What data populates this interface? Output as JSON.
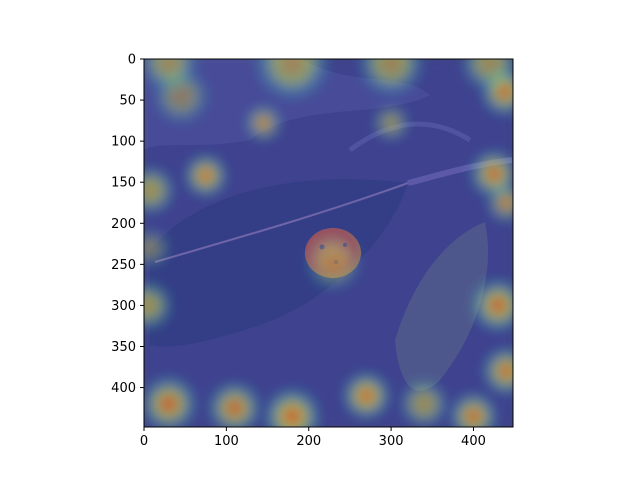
{
  "chart_data": {
    "type": "heatmap",
    "title": "",
    "xlabel": "",
    "ylabel": "",
    "xlim": [
      0,
      448
    ],
    "ylim": [
      448,
      0
    ],
    "x_ticks": [
      0,
      100,
      200,
      300,
      400
    ],
    "y_ticks": [
      0,
      50,
      100,
      150,
      200,
      250,
      300,
      350,
      400
    ],
    "grid": false,
    "colormap": "jet",
    "overlay_opacity": 0.5,
    "image_subject": "green apple leaf with an orange rust lesion, second leaf lower right",
    "colors": {
      "background_tint": "#3c3ca8",
      "hot": "#d9302a",
      "warm": "#f5e21f",
      "mid": "#2fd7c8"
    },
    "hotspots": [
      {
        "x": 75,
        "y": 142,
        "intensity": 1.0,
        "radius": 22
      },
      {
        "x": 145,
        "y": 78,
        "intensity": 0.85,
        "radius": 18
      },
      {
        "x": 300,
        "y": 78,
        "intensity": 0.7,
        "radius": 18
      },
      {
        "x": 45,
        "y": 45,
        "intensity": 0.55,
        "radius": 30
      },
      {
        "x": 30,
        "y": 5,
        "intensity": 0.7,
        "radius": 30
      },
      {
        "x": 180,
        "y": 5,
        "intensity": 0.75,
        "radius": 40
      },
      {
        "x": 300,
        "y": 5,
        "intensity": 0.75,
        "radius": 35
      },
      {
        "x": 420,
        "y": 5,
        "intensity": 0.75,
        "radius": 30
      },
      {
        "x": 438,
        "y": 40,
        "intensity": 0.95,
        "radius": 25
      },
      {
        "x": 425,
        "y": 140,
        "intensity": 0.95,
        "radius": 25
      },
      {
        "x": 440,
        "y": 175,
        "intensity": 0.85,
        "radius": 20
      },
      {
        "x": 8,
        "y": 160,
        "intensity": 0.8,
        "radius": 25
      },
      {
        "x": 5,
        "y": 300,
        "intensity": 0.8,
        "radius": 25
      },
      {
        "x": 8,
        "y": 230,
        "intensity": 0.5,
        "radius": 20
      },
      {
        "x": 430,
        "y": 300,
        "intensity": 0.95,
        "radius": 28
      },
      {
        "x": 440,
        "y": 380,
        "intensity": 0.95,
        "radius": 25
      },
      {
        "x": 30,
        "y": 420,
        "intensity": 0.9,
        "radius": 30
      },
      {
        "x": 110,
        "y": 425,
        "intensity": 0.9,
        "radius": 28
      },
      {
        "x": 180,
        "y": 435,
        "intensity": 1.0,
        "radius": 30
      },
      {
        "x": 270,
        "y": 410,
        "intensity": 1.0,
        "radius": 25
      },
      {
        "x": 340,
        "y": 420,
        "intensity": 0.75,
        "radius": 25
      },
      {
        "x": 400,
        "y": 435,
        "intensity": 0.95,
        "radius": 25
      },
      {
        "x": 230,
        "y": 248,
        "intensity": 0.55,
        "radius": 30
      }
    ]
  }
}
